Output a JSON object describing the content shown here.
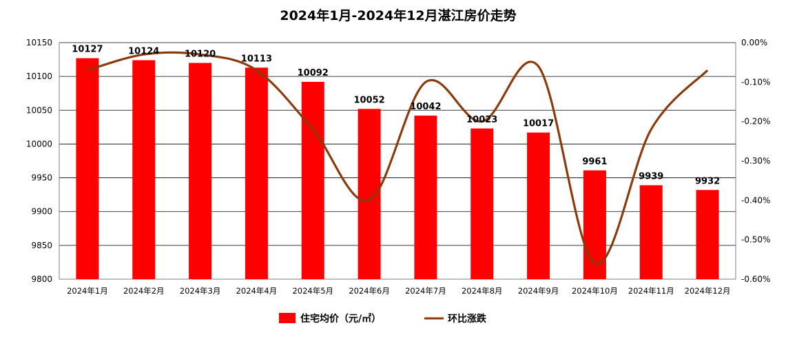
{
  "chart_data": {
    "type": "bar",
    "title": "2024年1月-2024年12月湛江房价走势",
    "categories": [
      "2024年1月",
      "2024年2月",
      "2024年3月",
      "2024年4月",
      "2024年5月",
      "2024年6月",
      "2024年7月",
      "2024年8月",
      "2024年9月",
      "2024年10月",
      "2024年11月",
      "2024年12月"
    ],
    "series": [
      {
        "name": "住宅均价（元/㎡）",
        "type": "bar",
        "axis": "left",
        "color": "#ff0000",
        "values": [
          10127,
          10124,
          10120,
          10113,
          10092,
          10052,
          10042,
          10023,
          10017,
          9961,
          9939,
          9932
        ]
      },
      {
        "name": "环比涨跌",
        "type": "line",
        "axis": "right",
        "color": "#8b3a0e",
        "values": [
          -0.07,
          -0.03,
          -0.03,
          -0.07,
          -0.22,
          -0.4,
          -0.1,
          -0.2,
          -0.06,
          -0.56,
          -0.22,
          -0.07
        ]
      }
    ],
    "y_left": {
      "min": 9800,
      "max": 10150,
      "ticks": [
        9800,
        9850,
        9900,
        9950,
        10000,
        10050,
        10100,
        10150
      ]
    },
    "y_right": {
      "min": -0.6,
      "max": 0.0,
      "ticks": [
        "0.00%",
        "-0.10%",
        "-0.20%",
        "-0.30%",
        "-0.40%",
        "-0.50%",
        "-0.60%"
      ]
    },
    "grid": true,
    "legend_position": "bottom-center"
  }
}
